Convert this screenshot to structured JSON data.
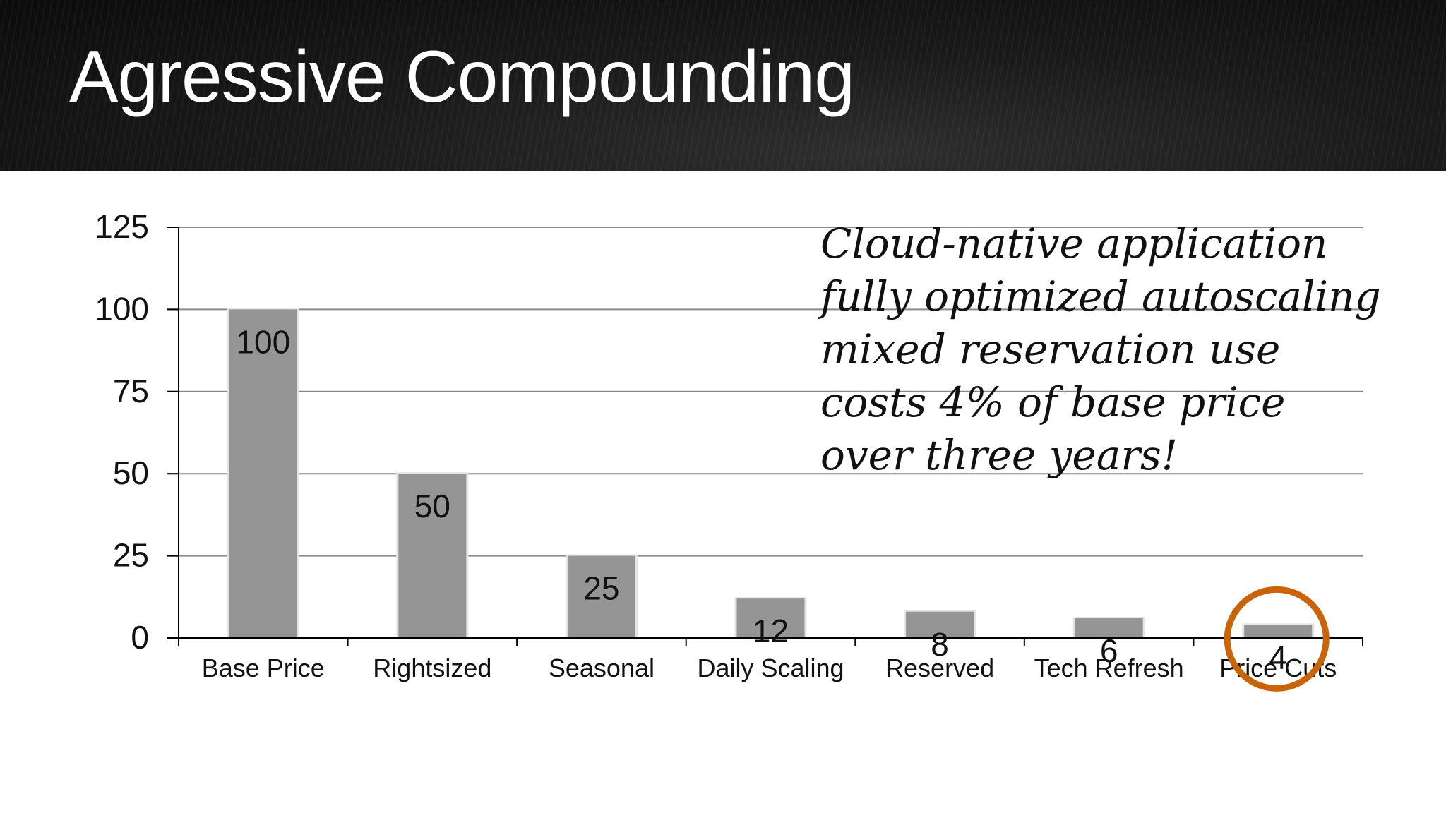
{
  "slide": {
    "title": "Agressive Compounding"
  },
  "annotation": {
    "lines": [
      "Cloud-native application",
      "fully optimized autoscaling",
      "mixed reservation use",
      "costs 4% of base price",
      "over three years!"
    ]
  },
  "chart_data": {
    "type": "bar",
    "title": "",
    "xlabel": "",
    "ylabel": "",
    "categories": [
      "Base Price",
      "Rightsized",
      "Seasonal",
      "Daily Scaling",
      "Reserved",
      "Tech Refresh",
      "Price Cuts"
    ],
    "values": [
      100,
      50,
      25,
      12,
      8,
      6,
      4
    ],
    "data_labels": [
      "100",
      "50",
      "25",
      "12",
      "8",
      "6",
      "4"
    ],
    "ylim": [
      0,
      125
    ],
    "yticks": [
      0,
      25,
      50,
      75,
      100,
      125
    ],
    "ytick_labels": [
      "0",
      "25",
      "50",
      "75",
      "100",
      "125"
    ],
    "grid": true,
    "legend": "none",
    "bar_color": "#959595",
    "highlight": {
      "category": "Price Cuts",
      "shape": "circle",
      "color": "#c8640a"
    }
  },
  "colors": {
    "header_background": "#111111",
    "title_text": "#ffffff",
    "axis": "#000000",
    "gridline": "#8a8a8a"
  }
}
